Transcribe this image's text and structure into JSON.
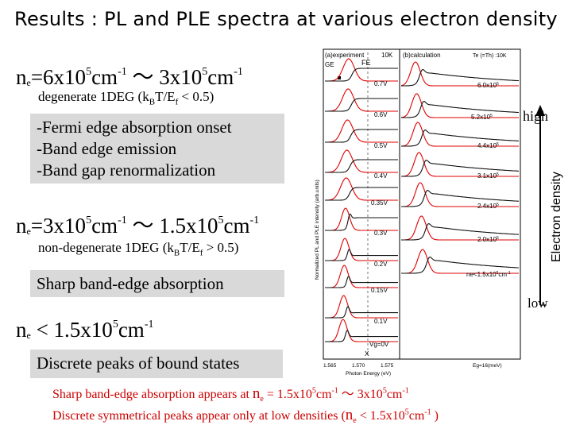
{
  "title": "Results : PL and PLE spectra at various electron density",
  "section1": {
    "ne_sym": "n",
    "ne_sub": "e",
    "range_a": "=6x10",
    "exp_a": "5",
    "unit_a": "cm",
    "unit_exp_a": "-1",
    "tilde": " ～ ",
    "range_b": "3x10",
    "exp_b": "5",
    "unit_b": "cm",
    "unit_exp_b": "-1",
    "regime_a": "degenerate 1DEG (k",
    "regime_b": "B",
    "regime_c": "T/E",
    "regime_d": "f",
    "regime_e": " < 0.5)"
  },
  "box1": {
    "line1": "-Fermi edge absorption onset",
    "line2": "-Band edge emission",
    "line3": "-Band gap renormalization"
  },
  "section2": {
    "ne_sym": "n",
    "ne_sub": "e",
    "range_a": "=3x10",
    "exp_a": "5",
    "unit_a": "cm",
    "unit_exp_a": "-1",
    "tilde": " ～ ",
    "range_b": "1.5x10",
    "exp_b": "5",
    "unit_b": "cm",
    "unit_exp_b": "-1",
    "regime_a": "non-degenerate 1DEG  (k",
    "regime_b": "B",
    "regime_c": "T/E",
    "regime_d": "f",
    "regime_e": " > 0.5)"
  },
  "box2": {
    "line1": "Sharp band-edge absorption"
  },
  "section3": {
    "ne_sym": "n",
    "ne_sub": "e",
    "range_a": " < 1.5x10",
    "exp_a": "5",
    "unit_a": "cm",
    "unit_exp_a": "-1"
  },
  "box3": {
    "line1": "Discrete peaks of bound states"
  },
  "bottom": {
    "line1_a": "Sharp band-edge absorption appears at ",
    "line1_n": "n",
    "line1_sub": "e",
    "line1_b": " = 1.5x10",
    "line1_exp": "5",
    "line1_c": "cm",
    "line1_exp2": "-1",
    "line1_d": " ～ 3x10",
    "line1_exp3": "5",
    "line1_e": "cm",
    "line1_exp4": "-1",
    "line2_a": "Discrete symmetrical peaks appear only at low densities (",
    "line2_n": "n",
    "line2_sub": "e",
    "line2_b": " < 1.5x10",
    "line2_exp": "5",
    "line2_c": "cm",
    "line2_exp2": "-1",
    "line2_d": " )"
  },
  "figure": {
    "panel_a": "(a)experiment",
    "panel_b": "(b)calculation",
    "temp_a": "10K",
    "temp_b": "Te (=Th) :10K",
    "fe_label": "FE",
    "ge_label": "GE",
    "x_marker": "X",
    "y_axis": "Normalized PL and PLE intensity (arb.units)",
    "x_axis": "Photon Energy (eV)",
    "x_axis_b": "Eg=16(meV)",
    "x_ticks": [
      "1.565",
      "1.570",
      "1.575"
    ],
    "voltages": [
      "0.7V",
      "0.6V",
      "0.5V",
      "0.4V",
      "0.35V",
      "0.3V",
      "0.2V",
      "0.15V",
      "0.1V",
      "Vg=0V"
    ],
    "densities": [
      "6.0x10",
      "5.2x10",
      "4.4x10",
      "3.1x10",
      "2.4x10",
      "2.0x10",
      "ne<1.5x10"
    ],
    "density_exp": "5",
    "density_exp2": "-1",
    "density_unit": "cm",
    "axis_high": "high",
    "axis_low": "low",
    "axis_label": "Electron density",
    "colors": {
      "pl": "#e00000",
      "ple": "#111111",
      "accent": "#cc0000"
    }
  }
}
